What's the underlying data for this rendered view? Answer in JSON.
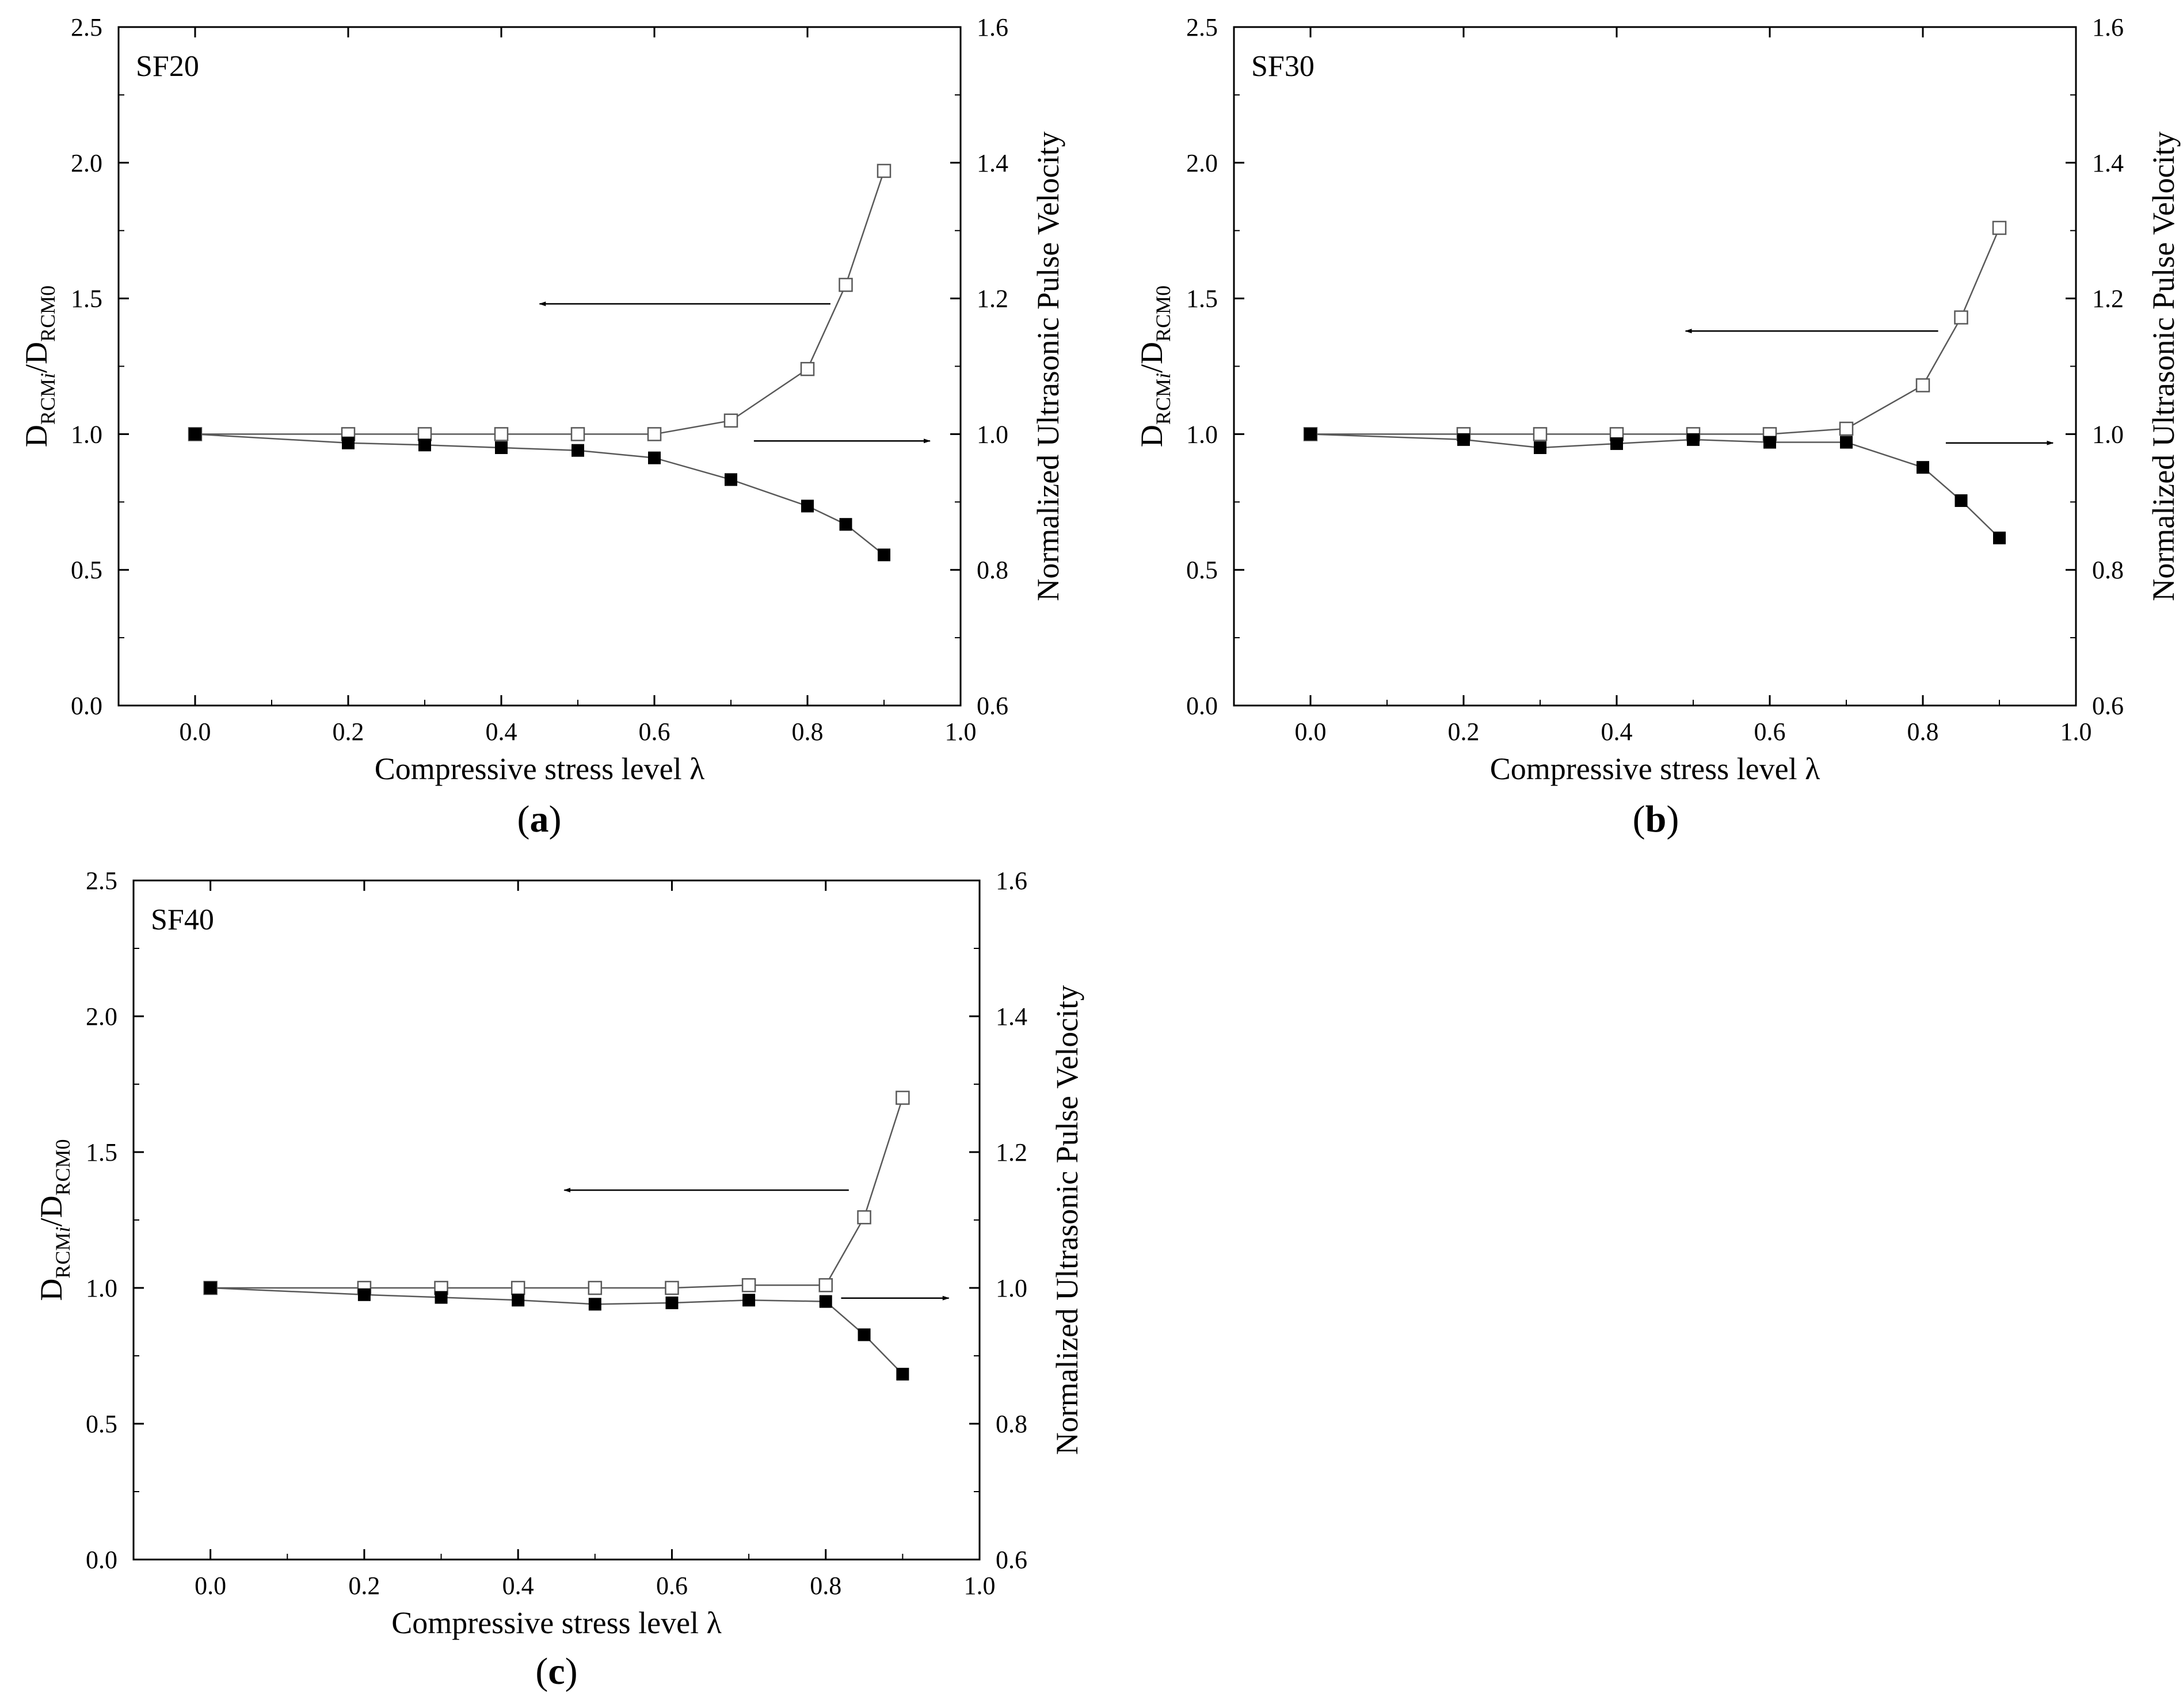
{
  "figure": {
    "colors": {
      "line": "#595959",
      "axis": "#000000",
      "open_fill": "#ffffff",
      "filled": "#000000"
    }
  },
  "chart_data": [
    {
      "type": "line",
      "panel_id": "a",
      "caption_letter": "a",
      "panel_label": "SF20",
      "xlabel": "Compressive stress level λ",
      "ylabel_left": {
        "base": "D",
        "sub1": "RCM",
        "ital": "i",
        "slash": "/",
        "base2": "D",
        "sub2": "RCM0"
      },
      "ylabel_right": "Normalized Ultrasonic Pulse Velocity",
      "xlim": [
        -0.1,
        1.0
      ],
      "ylim_left": [
        0.0,
        2.5
      ],
      "ylim_right": [
        0.6,
        1.6
      ],
      "xticks": [
        "0.0",
        "0.2",
        "0.4",
        "0.6",
        "0.8",
        "1.0"
      ],
      "yticks_left": [
        "0.0",
        "0.5",
        "1.0",
        "1.5",
        "2.0",
        "2.5"
      ],
      "yticks_right": [
        "0.6",
        "0.8",
        "1.0",
        "1.2",
        "1.4",
        "1.6"
      ],
      "series": [
        {
          "name": "D_RCMi/D_RCM0",
          "axis": "left",
          "marker": "open-square",
          "x": [
            0.0,
            0.2,
            0.3,
            0.4,
            0.5,
            0.6,
            0.7,
            0.8,
            0.85,
            0.9
          ],
          "values": [
            1.0,
            1.0,
            1.0,
            1.0,
            1.0,
            1.0,
            1.05,
            1.24,
            1.55,
            1.97
          ]
        },
        {
          "name": "Normalized Ultrasonic Pulse Velocity",
          "axis": "right",
          "marker": "filled-square",
          "x": [
            0.0,
            0.2,
            0.3,
            0.4,
            0.5,
            0.6,
            0.7,
            0.8,
            0.85,
            0.9
          ],
          "values": [
            1.0,
            0.987,
            0.984,
            0.98,
            0.976,
            0.965,
            0.933,
            0.894,
            0.867,
            0.822
          ]
        }
      ],
      "arrows": [
        {
          "axis": "left",
          "points_to": "left",
          "y": 1.48,
          "x_from": 0.83,
          "x_to": 0.45
        },
        {
          "axis": "right",
          "points_to": "right",
          "y": 0.99,
          "x_from": 0.73,
          "x_to": 0.96
        }
      ]
    },
    {
      "type": "line",
      "panel_id": "b",
      "caption_letter": "b",
      "panel_label": "SF30",
      "xlabel": "Compressive stress level λ",
      "ylabel_left": {
        "base": "D",
        "sub1": "RCM",
        "ital": "i",
        "slash": "/",
        "base2": "D",
        "sub2": "RCM0"
      },
      "ylabel_right": "Normalized Ultrasonic Pulse Velocity",
      "xlim": [
        -0.1,
        1.0
      ],
      "ylim_left": [
        0.0,
        2.5
      ],
      "ylim_right": [
        0.6,
        1.6
      ],
      "xticks": [
        "0.0",
        "0.2",
        "0.4",
        "0.6",
        "0.8",
        "1.0"
      ],
      "yticks_left": [
        "0.0",
        "0.5",
        "1.0",
        "1.5",
        "2.0",
        "2.5"
      ],
      "yticks_right": [
        "0.6",
        "0.8",
        "1.0",
        "1.2",
        "1.4",
        "1.6"
      ],
      "series": [
        {
          "name": "D_RCMi/D_RCM0",
          "axis": "left",
          "marker": "open-square",
          "x": [
            0.0,
            0.2,
            0.3,
            0.4,
            0.5,
            0.6,
            0.7,
            0.8,
            0.85,
            0.9
          ],
          "values": [
            1.0,
            1.0,
            1.0,
            1.0,
            1.0,
            1.0,
            1.02,
            1.18,
            1.43,
            1.76
          ]
        },
        {
          "name": "Normalized Ultrasonic Pulse Velocity",
          "axis": "right",
          "marker": "filled-square",
          "x": [
            0.0,
            0.2,
            0.3,
            0.4,
            0.5,
            0.6,
            0.7,
            0.8,
            0.85,
            0.9
          ],
          "values": [
            1.0,
            0.992,
            0.98,
            0.986,
            0.992,
            0.988,
            0.988,
            0.951,
            0.902,
            0.847
          ]
        }
      ],
      "arrows": [
        {
          "axis": "left",
          "points_to": "left",
          "y": 1.38,
          "x_from": 0.82,
          "x_to": 0.49
        },
        {
          "axis": "right",
          "points_to": "right",
          "y": 0.987,
          "x_from": 0.83,
          "x_to": 0.97
        }
      ]
    },
    {
      "type": "line",
      "panel_id": "c",
      "caption_letter": "c",
      "panel_label": "SF40",
      "xlabel": "Compressive stress level λ",
      "ylabel_left": {
        "base": "D",
        "sub1": "RCM",
        "ital": "i",
        "slash": "/",
        "base2": "D",
        "sub2": "RCM0"
      },
      "ylabel_right": "Normalized Ultrasonic Pulse Velocity",
      "xlim": [
        -0.1,
        1.0
      ],
      "ylim_left": [
        0.0,
        2.5
      ],
      "ylim_right": [
        0.6,
        1.6
      ],
      "xticks": [
        "0.0",
        "0.2",
        "0.4",
        "0.6",
        "0.8",
        "1.0"
      ],
      "yticks_left": [
        "0.0",
        "0.5",
        "1.0",
        "1.5",
        "2.0",
        "2.5"
      ],
      "yticks_right": [
        "0.6",
        "0.8",
        "1.0",
        "1.2",
        "1.4",
        "1.6"
      ],
      "series": [
        {
          "name": "D_RCMi/D_RCM0",
          "axis": "left",
          "marker": "open-square",
          "x": [
            0.0,
            0.2,
            0.3,
            0.4,
            0.5,
            0.6,
            0.7,
            0.8,
            0.85,
            0.9
          ],
          "values": [
            1.0,
            1.0,
            1.0,
            1.0,
            1.0,
            1.0,
            1.01,
            1.01,
            1.26,
            1.7
          ]
        },
        {
          "name": "Normalized Ultrasonic Pulse Velocity",
          "axis": "right",
          "marker": "filled-square",
          "x": [
            0.0,
            0.2,
            0.3,
            0.4,
            0.5,
            0.6,
            0.7,
            0.8,
            0.85,
            0.9
          ],
          "values": [
            1.0,
            0.99,
            0.986,
            0.982,
            0.976,
            0.978,
            0.982,
            0.98,
            0.931,
            0.873
          ]
        }
      ],
      "arrows": [
        {
          "axis": "left",
          "points_to": "left",
          "y": 1.36,
          "x_from": 0.83,
          "x_to": 0.46
        },
        {
          "axis": "right",
          "points_to": "right",
          "y": 0.985,
          "x_from": 0.82,
          "x_to": 0.96
        }
      ]
    }
  ]
}
